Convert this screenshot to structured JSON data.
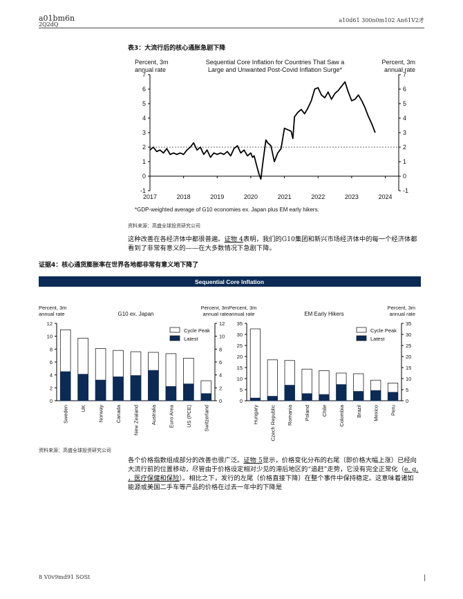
{
  "header": {
    "left_line1": "a01bm6n",
    "left_line2": "2Q2dQ",
    "right": "a10d61 300n0m102 An61V2才"
  },
  "figure3": {
    "label": "表3：大流行后的核心通胀急剧下降",
    "source": "资料来源：高盛全球投资研究公司"
  },
  "paragraph1": {
    "before_link": "这种改善在各经济体中都很普遍。",
    "link": "证物 4",
    "after_link": "表明，我们的G10集团和新兴市场经济体中的每一个经济体都看到了非常有意义的——在大多数情况下急剧下降。"
  },
  "figure4": {
    "label": "证据4：核心通货膨胀率在世界各地都非常有意义地下降了",
    "source": "资料来源：高盛全球投资研究公司"
  },
  "paragraph2": {
    "part1": "各个价格指数组成部分的改善也很广泛。",
    "link1": "证物 5",
    "part2": "显示，价格变化分布的右尾（即价格大幅上涨）已经向大流行前的位置移动，尽管由于价格设定相对少见的滞后地区的“追赶”走势，它没有完全正常化（",
    "link2": "e. g. ，医疗保健和保险",
    "part3": "）。相比之下，发行的左尾（价格直接下降）在整个事件中保持稳定。这意味着诸如能源或美国二手车等产品的价格在过去一年中的下降是"
  },
  "footer": {
    "left": "8 V0v9md91 SOSt",
    "right": "|"
  },
  "chart_data": [
    {
      "type": "line",
      "title": "Sequential Core Inflation for Countries That Saw a Large and Unwanted Post-Covid Inflation Surge*",
      "ylabel_left": "Percent, 3m annual rate",
      "ylabel_right": "Percent, 3m annual rate",
      "ylim": [
        -1,
        7
      ],
      "yticks": [
        -1,
        0,
        1,
        2,
        3,
        4,
        5,
        6,
        7
      ],
      "xticks": [
        "2017",
        "2018",
        "2019",
        "2020",
        "2021",
        "2022",
        "2023",
        "2024"
      ],
      "xlim": [
        2017,
        2024.4
      ],
      "reference_line": 2,
      "footnote": "*GDP-weighted average of G10 economies ex. Japan plus EM early hikers.",
      "series": [
        {
          "color": "#000000",
          "x": [
            2017.0,
            2017.1,
            2017.2,
            2017.3,
            2017.4,
            2017.5,
            2017.6,
            2017.7,
            2017.8,
            2017.9,
            2018.0,
            2018.1,
            2018.2,
            2018.3,
            2018.4,
            2018.5,
            2018.6,
            2018.7,
            2018.8,
            2018.9,
            2019.0,
            2019.1,
            2019.2,
            2019.3,
            2019.4,
            2019.5,
            2019.6,
            2019.7,
            2019.8,
            2019.9,
            2020.0,
            2020.05,
            2020.1,
            2020.2,
            2020.25,
            2020.3,
            2020.35,
            2020.45,
            2020.5,
            2020.6,
            2020.7,
            2020.8,
            2020.9,
            2021.0,
            2021.1,
            2021.2,
            2021.25,
            2021.3,
            2021.4,
            2021.5,
            2021.6,
            2021.7,
            2021.8,
            2021.9,
            2022.0,
            2022.1,
            2022.2,
            2022.3,
            2022.4,
            2022.5,
            2022.6,
            2022.7,
            2022.8,
            2022.9,
            2023.0,
            2023.1,
            2023.2,
            2023.3,
            2023.4,
            2023.5,
            2023.6,
            2023.7
          ],
          "y": [
            1.8,
            2.0,
            1.7,
            1.8,
            1.6,
            1.9,
            1.5,
            1.6,
            1.5,
            1.6,
            1.5,
            1.8,
            2.0,
            2.3,
            1.8,
            2.0,
            1.5,
            1.8,
            1.3,
            1.6,
            1.5,
            1.6,
            1.5,
            1.7,
            1.4,
            1.9,
            2.1,
            1.6,
            1.8,
            1.4,
            1.6,
            1.3,
            1.4,
            0.5,
            0.1,
            -0.2,
            0.8,
            2.5,
            2.3,
            2.1,
            1.0,
            1.6,
            1.9,
            3.3,
            3.2,
            3.1,
            2.6,
            4.1,
            4.4,
            4.6,
            4.3,
            4.7,
            5.2,
            6.0,
            6.1,
            5.6,
            5.4,
            5.8,
            5.3,
            5.7,
            5.9,
            6.2,
            6.5,
            5.8,
            5.2,
            5.3,
            5.6,
            5.2,
            4.7,
            4.1,
            3.6,
            3.0
          ]
        }
      ]
    },
    {
      "type": "bar",
      "banner": "Sequential Core Inflation",
      "title": "G10 ex. Japan",
      "ylabel_left": "Percent, 3m annual rate",
      "ylabel_right": "Percent, 3m annual rate",
      "ylim": [
        0,
        12
      ],
      "yticks": [
        0,
        2,
        4,
        6,
        8,
        10,
        12
      ],
      "categories": [
        "Sweden",
        "UK",
        "Norway",
        "Canada",
        "New Zealand",
        "Australia",
        "Euro Area",
        "US (PCE)",
        "Switzerland"
      ],
      "series": [
        {
          "name": "Cycle Peak",
          "color": "#ffffff",
          "values": [
            11.0,
            9.7,
            8.1,
            7.8,
            7.6,
            7.5,
            7.3,
            6.6,
            3.1
          ]
        },
        {
          "name": "Latest",
          "color": "#0b2a55",
          "values": [
            4.5,
            4.1,
            3.2,
            3.7,
            3.9,
            4.7,
            2.2,
            2.6,
            1.1
          ]
        }
      ]
    },
    {
      "type": "bar",
      "title": "EM Early Hikers",
      "ylabel_left": "Percent, 3m annual rate",
      "ylabel_right": "Percent, 3m annual rate",
      "ylim": [
        0,
        35
      ],
      "yticks": [
        0,
        5,
        10,
        15,
        20,
        25,
        30,
        35
      ],
      "categories": [
        "Hungary",
        "Czech Republic",
        "Romania",
        "Poland",
        "Chile",
        "Colombia",
        "Brazil",
        "Mexico",
        "Peru"
      ],
      "series": [
        {
          "name": "Cycle Peak",
          "color": "#ffffff",
          "values": [
            32.5,
            18.5,
            18.2,
            14.3,
            13.6,
            12.5,
            12.2,
            9.3,
            8.0
          ]
        },
        {
          "name": "Latest",
          "color": "#0b2a55",
          "values": [
            1.2,
            2.0,
            7.0,
            3.2,
            2.8,
            7.3,
            4.2,
            4.6,
            3.8
          ]
        }
      ]
    }
  ]
}
